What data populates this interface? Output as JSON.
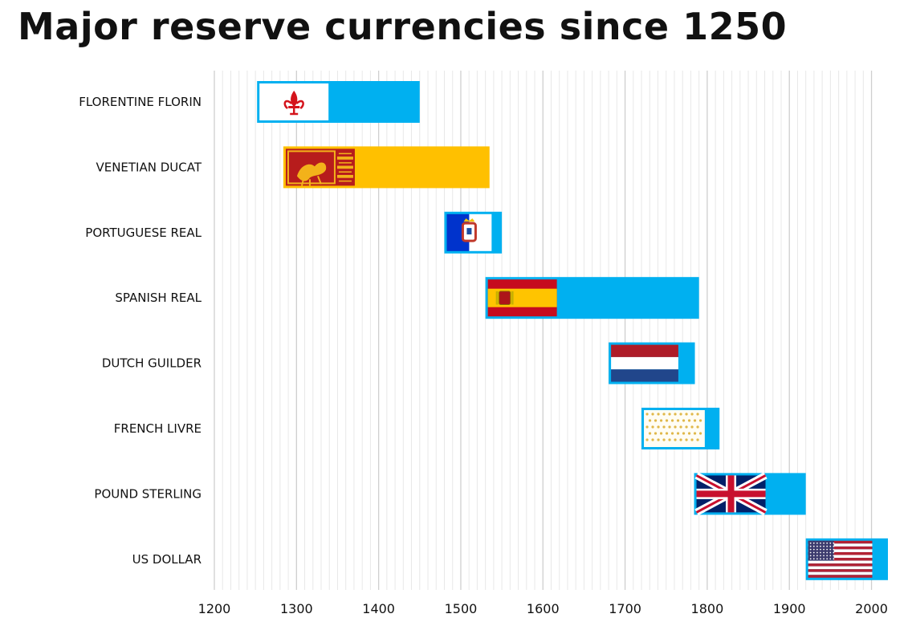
{
  "title": "Major reserve currencies since 1250",
  "chart_data": {
    "type": "bar",
    "orientation": "horizontal",
    "title": "Major reserve currencies since 1250",
    "xlabel": "",
    "ylabel": "",
    "xlim": [
      1200,
      2020
    ],
    "xticks": [
      1200,
      1300,
      1400,
      1500,
      1600,
      1700,
      1800,
      1900,
      2000
    ],
    "grid": true,
    "legend": "none",
    "bar_color": "#00b0f0",
    "series": [
      {
        "label": "FLORENTINE FLORIN",
        "start": 1252,
        "end": 1450,
        "flag": "florence-flag-icon",
        "color": "#00b0f0"
      },
      {
        "label": "VENETIAN DUCAT",
        "start": 1284,
        "end": 1535,
        "flag": "venice-flag-icon",
        "color": "#ffc000"
      },
      {
        "label": "PORTUGUESE REAL",
        "start": 1480,
        "end": 1550,
        "flag": "portugal-flag-icon",
        "color": "#00b0f0"
      },
      {
        "label": "SPANISH REAL",
        "start": 1530,
        "end": 1790,
        "flag": "spain-flag-icon",
        "color": "#00b0f0"
      },
      {
        "label": "DUTCH GUILDER",
        "start": 1680,
        "end": 1785,
        "flag": "netherlands-flag-icon",
        "color": "#00b0f0"
      },
      {
        "label": "FRENCH LIVRE",
        "start": 1720,
        "end": 1815,
        "flag": "france-flag-icon",
        "color": "#00b0f0"
      },
      {
        "label": "POUND STERLING",
        "start": 1784,
        "end": 1920,
        "flag": "uk-flag-icon",
        "color": "#00b0f0"
      },
      {
        "label": "US DOLLAR",
        "start": 1920,
        "end": 2020,
        "flag": "usa-flag-icon",
        "color": "#00b0f0"
      }
    ]
  }
}
